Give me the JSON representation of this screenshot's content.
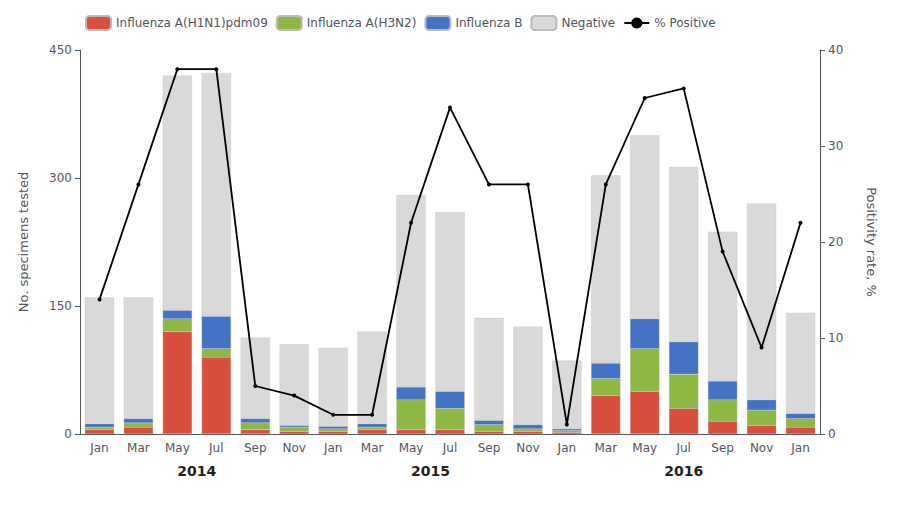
{
  "chart_data": {
    "type": "bar",
    "categories": [
      "Jan",
      "Mar",
      "May",
      "Jul",
      "Sep",
      "Nov",
      "Jan",
      "Mar",
      "May",
      "Jul",
      "Sep",
      "Nov",
      "Jan",
      "Mar",
      "May",
      "Jul",
      "Sep",
      "Nov",
      "Jan"
    ],
    "series": [
      {
        "name": "Influenza A(H1N1)pdm09",
        "color": "#d94f3d",
        "values": [
          5,
          8,
          120,
          90,
          5,
          3,
          3,
          5,
          5,
          5,
          3,
          3,
          2,
          45,
          50,
          30,
          15,
          10,
          8
        ]
      },
      {
        "name": "Influenza A(H3N2)",
        "color": "#8eb844",
        "values": [
          3,
          5,
          15,
          10,
          8,
          5,
          3,
          3,
          35,
          25,
          8,
          3,
          2,
          20,
          50,
          40,
          25,
          18,
          10
        ]
      },
      {
        "name": "Influenza B",
        "color": "#4472c4",
        "values": [
          4,
          5,
          10,
          38,
          5,
          2,
          3,
          4,
          15,
          20,
          5,
          5,
          2,
          18,
          35,
          38,
          22,
          12,
          6
        ]
      },
      {
        "name": "Negative",
        "color": "#d9d9d9",
        "values": [
          148,
          142,
          275,
          285,
          95,
          95,
          92,
          108,
          225,
          210,
          120,
          115,
          80,
          220,
          215,
          205,
          175,
          230,
          118
        ]
      },
      {
        "name": "% Positive",
        "type": "line",
        "axis": "y2",
        "color": "#000000",
        "values": [
          14,
          26,
          38,
          38,
          5,
          4,
          2,
          2,
          22,
          34,
          26,
          26,
          1,
          26,
          35,
          36,
          19,
          9,
          22
        ]
      }
    ],
    "ylabel": "No. specimens tested",
    "y2label": "Positivity rate, %",
    "ylim": [
      0,
      450
    ],
    "yticks": [
      0,
      150,
      300,
      450
    ],
    "y2lim": [
      0,
      40
    ],
    "y2ticks": [
      0,
      10,
      20,
      30,
      40
    ],
    "stacked": true,
    "grid": false,
    "legend": "upper left",
    "annotations": [
      {
        "text": "2014",
        "x": 2.5
      },
      {
        "text": "2015",
        "x": 8.5
      },
      {
        "text": "2016",
        "x": 15.0
      }
    ]
  }
}
